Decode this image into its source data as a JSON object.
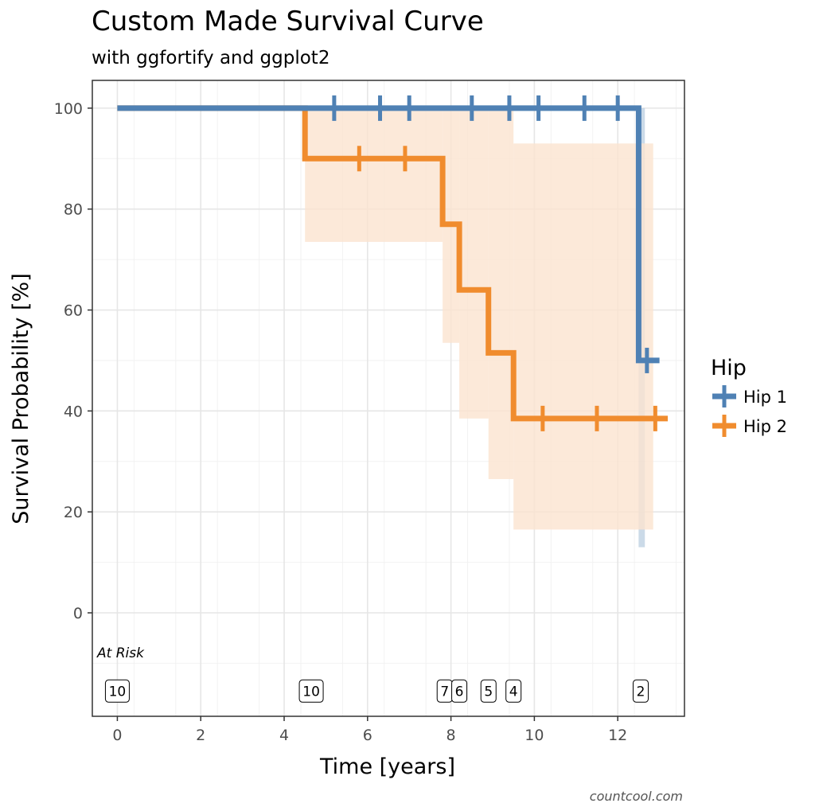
{
  "chart_data": {
    "type": "line",
    "subtype": "kaplan-meier step survival curve",
    "title": "Custom Made Survival Curve",
    "subtitle": "with ggfortify and ggplot2",
    "xlabel": "Time [years]",
    "ylabel": "Survival Probability [%]",
    "xlim": [
      -0.6,
      13.6
    ],
    "ylim": [
      -20.5,
      105.5
    ],
    "x_ticks": [
      0,
      2,
      4,
      6,
      8,
      10,
      12
    ],
    "y_ticks": [
      0,
      20,
      40,
      60,
      80,
      100
    ],
    "grid": true,
    "legend": {
      "title": "Hip",
      "position": "right"
    },
    "series": [
      {
        "name": "Hip 1",
        "color": "#4f81b4",
        "steps": [
          [
            0,
            100
          ],
          [
            12.5,
            100
          ],
          [
            12.5,
            50
          ],
          [
            13.0,
            50
          ]
        ],
        "censor_x": [
          5.2,
          6.3,
          7.0,
          8.5,
          9.4,
          10.1,
          11.2,
          12.0,
          12.7
        ],
        "confidence_band": [
          {
            "x0": 12.5,
            "x1": 12.65,
            "lower": 13,
            "upper": 100
          }
        ]
      },
      {
        "name": "Hip 2",
        "color": "#f08c2e",
        "steps": [
          [
            0,
            100
          ],
          [
            4.5,
            100
          ],
          [
            4.5,
            90
          ],
          [
            7.8,
            90
          ],
          [
            7.8,
            77
          ],
          [
            8.2,
            77
          ],
          [
            8.2,
            64
          ],
          [
            8.9,
            64
          ],
          [
            8.9,
            51.5
          ],
          [
            9.5,
            51.5
          ],
          [
            9.5,
            38.5
          ],
          [
            13.2,
            38.5
          ]
        ],
        "censor_x": [
          5.8,
          6.9,
          10.2,
          11.5,
          12.9
        ],
        "confidence_band": [
          {
            "x0": 4.5,
            "x1": 7.8,
            "lower": 73.5,
            "upper": 100
          },
          {
            "x0": 7.8,
            "x1": 8.2,
            "lower": 53.5,
            "upper": 100
          },
          {
            "x0": 8.2,
            "x1": 8.9,
            "lower": 38.5,
            "upper": 100
          },
          {
            "x0": 8.9,
            "x1": 9.5,
            "lower": 26.5,
            "upper": 100
          },
          {
            "x0": 9.5,
            "x1": 12.85,
            "lower": 16.5,
            "upper": 93
          }
        ]
      }
    ],
    "at_risk": {
      "label": "At Risk",
      "y": -15.5,
      "points": [
        {
          "x": 0,
          "n": "10"
        },
        {
          "x": 4.65,
          "n": "10"
        },
        {
          "x": 7.85,
          "n": "7"
        },
        {
          "x": 8.2,
          "n": "6"
        },
        {
          "x": 8.9,
          "n": "5"
        },
        {
          "x": 9.5,
          "n": "4"
        },
        {
          "x": 12.55,
          "n": "2"
        }
      ]
    },
    "caption": "countcool.com"
  }
}
